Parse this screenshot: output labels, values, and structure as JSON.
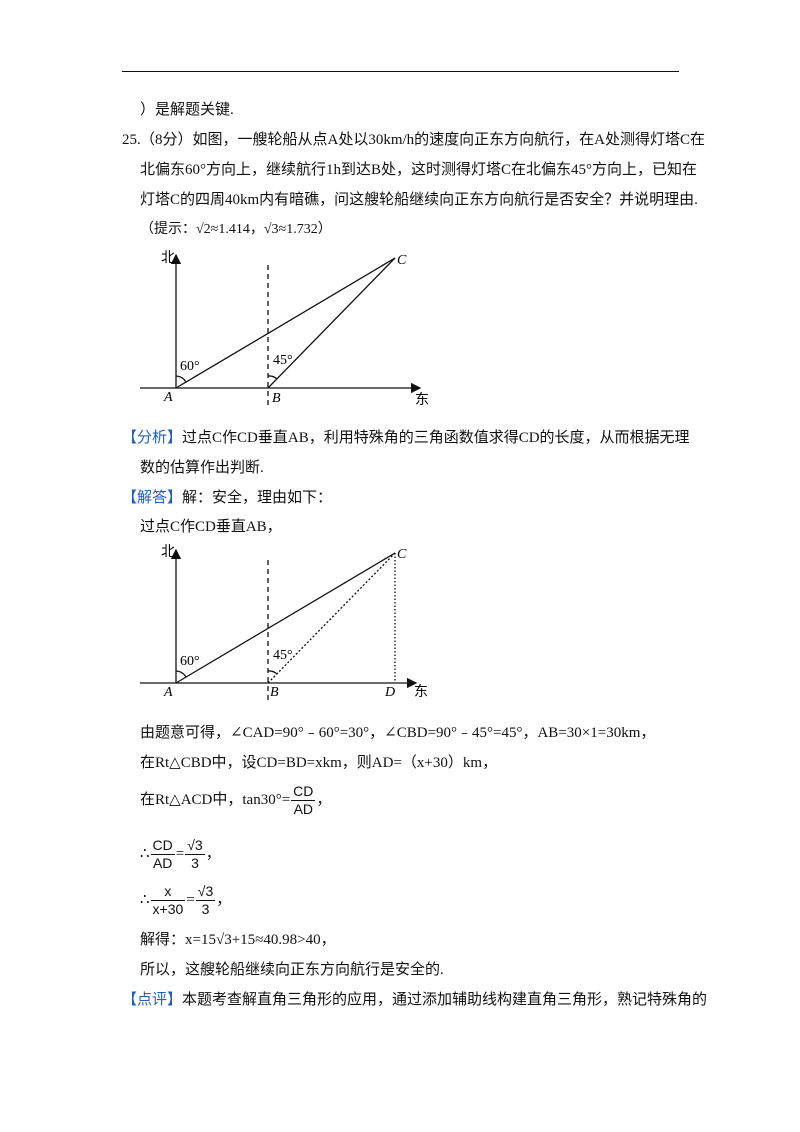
{
  "header_fragment": "）是解题关键.",
  "question": {
    "number": "25.",
    "lines": [
      "（8分）如图，一艘轮船从点A处以30km/h的速度向正东方向航行，在A处测得灯塔C在",
      "北偏东60°方向上，继续航行1h到达B处，这时测得灯塔C在北偏东45°方向上，已知在",
      "灯塔C的四周40km内有暗礁，问这艘轮船继续向正东方向航行是否安全？并说明理由."
    ],
    "hint": "（提示：√2≈1.414，√3≈1.732）"
  },
  "figure_1": {
    "north": "北",
    "east": "东",
    "point_a": "A",
    "point_b": "B",
    "point_c": "C",
    "angle_a": "60°",
    "angle_b": "45°"
  },
  "analysis": {
    "tag": "【分析】",
    "lines": [
      "过点C作CD垂直AB，利用特殊角的三角函数值求得CD的长度，从而根据无理",
      "数的估算作出判断."
    ]
  },
  "answer": {
    "tag": "【解答】",
    "intro": "解：安全，理由如下：",
    "step_1": "过点C作CD垂直AB，"
  },
  "figure_2": {
    "north": "北",
    "east": "东",
    "point_a": "A",
    "point_b": "B",
    "point_c": "C",
    "point_d": "D",
    "angle_a": "60°",
    "angle_b": "45°"
  },
  "steps": {
    "line_1": "由题意可得，∠CAD=90°﹣60°=30°，∠CBD=90°﹣45°=45°，AB=30×1=30km，",
    "line_2": "在Rt△CBD中，设CD=BD=xkm，则AD=（x+30）km，",
    "line_3": {
      "text": "在Rt△ACD中，tan30°=",
      "numerator": "CD",
      "denominator": "AD",
      "end": "，"
    },
    "line_4": {
      "prefix": "∴",
      "left_numerator": "CD",
      "left_denominator": "AD",
      "equals": "=",
      "right_numerator": "√3",
      "right_denominator": "3",
      "end": "，"
    },
    "line_5": {
      "prefix": "∴",
      "left_numerator": "x",
      "left_denominator": "x+30",
      "equals": "=",
      "right_numerator": "√3",
      "right_denominator": "3",
      "end": "，"
    },
    "line_6": "解得：x=15√3+15≈40.98>40，",
    "line_7": "所以，这艘轮船继续向正东方向航行是安全的."
  },
  "comment": {
    "tag": "【点评】",
    "text": "本题考查解直角三角形的应用，通过添加辅助线构建直角三角形，熟记特殊角的"
  }
}
